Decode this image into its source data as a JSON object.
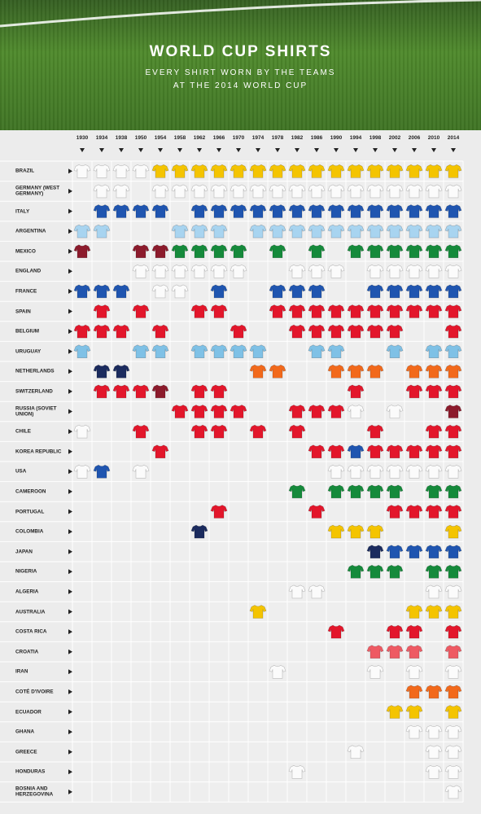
{
  "header": {
    "title": "WORLD CUP SHIRTS",
    "subtitle_lines": [
      "EVERY SHIRT WORN BY THE TEAMS",
      "AT THE 2014 WORLD CUP"
    ]
  },
  "years": [
    "1930",
    "1934",
    "1938",
    "1950",
    "1954",
    "1958",
    "1962",
    "1966",
    "1970",
    "1974",
    "1978",
    "1982",
    "1986",
    "1990",
    "1994",
    "1998",
    "2002",
    "2006",
    "2010",
    "2014"
  ],
  "colors": {
    "w": "#fbfbfb",
    "y": "#f4c400",
    "b": "#1f55b0",
    "a": "#a8d4f0",
    "s": "#7fc1e6",
    "n": "#1b2b5e",
    "r": "#e3162b",
    "m": "#8c1b2c",
    "g": "#158a3b",
    "o": "#f2691b",
    "c": "#ee5a63"
  },
  "teams": [
    {
      "name": "BRAZIL",
      "shirts": [
        "w",
        "w",
        "w",
        "w",
        "y",
        "y",
        "y",
        "y",
        "y",
        "y",
        "y",
        "y",
        "y",
        "y",
        "y",
        "y",
        "y",
        "y",
        "y",
        "y"
      ]
    },
    {
      "name": "GERMANY (WEST GERMANY)",
      "shirts": [
        null,
        "w",
        "w",
        null,
        "w",
        "w",
        "w",
        "w",
        "w",
        "w",
        "w",
        "w",
        "w",
        "w",
        "w",
        "w",
        "w",
        "w",
        "w",
        "w"
      ]
    },
    {
      "name": "ITALY",
      "shirts": [
        null,
        "b",
        "b",
        "b",
        "b",
        null,
        "b",
        "b",
        "b",
        "b",
        "b",
        "b",
        "b",
        "b",
        "b",
        "b",
        "b",
        "b",
        "b",
        "b"
      ]
    },
    {
      "name": "ARGENTINA",
      "shirts": [
        "a",
        "a",
        null,
        null,
        null,
        "a",
        "a",
        "a",
        null,
        "a",
        "a",
        "a",
        "a",
        "a",
        "a",
        "a",
        "a",
        "a",
        "a",
        "a"
      ]
    },
    {
      "name": "MEXICO",
      "shirts": [
        "m",
        null,
        null,
        "m",
        "m",
        "g",
        "g",
        "g",
        "g",
        null,
        "g",
        null,
        "g",
        null,
        "g",
        "g",
        "g",
        "g",
        "g",
        "g"
      ]
    },
    {
      "name": "ENGLAND",
      "shirts": [
        null,
        null,
        null,
        "w",
        "w",
        "w",
        "w",
        "w",
        "w",
        null,
        null,
        "w",
        "w",
        "w",
        null,
        "w",
        "w",
        "w",
        "w",
        "w"
      ]
    },
    {
      "name": "FRANCE",
      "shirts": [
        "b",
        "b",
        "b",
        null,
        "w",
        "w",
        null,
        "b",
        null,
        null,
        "b",
        "b",
        "b",
        null,
        null,
        "b",
        "b",
        "b",
        "b",
        "b"
      ]
    },
    {
      "name": "SPAIN",
      "shirts": [
        null,
        "r",
        null,
        "r",
        null,
        null,
        "r",
        "r",
        null,
        null,
        "r",
        "r",
        "r",
        "r",
        "r",
        "r",
        "r",
        "r",
        "r",
        "r"
      ]
    },
    {
      "name": "BELGIUM",
      "shirts": [
        "r",
        "r",
        "r",
        null,
        "r",
        null,
        null,
        null,
        "r",
        null,
        null,
        "r",
        "r",
        "r",
        "r",
        "r",
        "r",
        null,
        null,
        "r"
      ]
    },
    {
      "name": "URUGUAY",
      "shirts": [
        "s",
        null,
        null,
        "s",
        "s",
        null,
        "s",
        "s",
        "s",
        "s",
        null,
        null,
        "s",
        "s",
        null,
        null,
        "s",
        null,
        "s",
        "s"
      ]
    },
    {
      "name": "NETHERLANDS",
      "shirts": [
        null,
        "n",
        "n",
        null,
        null,
        null,
        null,
        null,
        null,
        "o",
        "o",
        null,
        null,
        "o",
        "o",
        "o",
        null,
        "o",
        "o",
        "o"
      ]
    },
    {
      "name": "SWITZERLAND",
      "shirts": [
        null,
        "r",
        "r",
        "r",
        "m",
        null,
        "r",
        "r",
        null,
        null,
        null,
        null,
        null,
        null,
        "r",
        null,
        null,
        "r",
        "r",
        "r"
      ]
    },
    {
      "name": "RUSSIA (SOVIET UNION)",
      "shirts": [
        null,
        null,
        null,
        null,
        null,
        "r",
        "r",
        "r",
        "r",
        null,
        null,
        "r",
        "r",
        "r",
        "w",
        null,
        "w",
        null,
        null,
        "m"
      ]
    },
    {
      "name": "CHILE",
      "shirts": [
        "w",
        null,
        null,
        "r",
        null,
        null,
        "r",
        "r",
        null,
        "r",
        null,
        "r",
        null,
        null,
        null,
        "r",
        null,
        null,
        "r",
        "r"
      ]
    },
    {
      "name": "KOREA REPUBLIC",
      "shirts": [
        null,
        null,
        null,
        null,
        "r",
        null,
        null,
        null,
        null,
        null,
        null,
        null,
        "r",
        "r",
        "b",
        "r",
        "r",
        "r",
        "r",
        "r"
      ]
    },
    {
      "name": "USA",
      "shirts": [
        "w",
        "b",
        null,
        "w",
        null,
        null,
        null,
        null,
        null,
        null,
        null,
        null,
        null,
        "w",
        "w",
        "w",
        "w",
        "w",
        "w",
        "w"
      ]
    },
    {
      "name": "CAMEROON",
      "shirts": [
        null,
        null,
        null,
        null,
        null,
        null,
        null,
        null,
        null,
        null,
        null,
        "g",
        null,
        "g",
        "g",
        "g",
        "g",
        null,
        "g",
        "g"
      ]
    },
    {
      "name": "PORTUGAL",
      "shirts": [
        null,
        null,
        null,
        null,
        null,
        null,
        null,
        "r",
        null,
        null,
        null,
        null,
        "r",
        null,
        null,
        null,
        "r",
        "r",
        "r",
        "r"
      ]
    },
    {
      "name": "COLOMBIA",
      "shirts": [
        null,
        null,
        null,
        null,
        null,
        null,
        "n",
        null,
        null,
        null,
        null,
        null,
        null,
        "y",
        "y",
        "y",
        null,
        null,
        null,
        "y"
      ]
    },
    {
      "name": "JAPAN",
      "shirts": [
        null,
        null,
        null,
        null,
        null,
        null,
        null,
        null,
        null,
        null,
        null,
        null,
        null,
        null,
        null,
        "n",
        "b",
        "b",
        "b",
        "b"
      ]
    },
    {
      "name": "NIGERIA",
      "shirts": [
        null,
        null,
        null,
        null,
        null,
        null,
        null,
        null,
        null,
        null,
        null,
        null,
        null,
        null,
        "g",
        "g",
        "g",
        null,
        "g",
        "g"
      ]
    },
    {
      "name": "ALGERIA",
      "shirts": [
        null,
        null,
        null,
        null,
        null,
        null,
        null,
        null,
        null,
        null,
        null,
        "w",
        "w",
        null,
        null,
        null,
        null,
        null,
        "w",
        "w"
      ]
    },
    {
      "name": "AUSTRALIA",
      "shirts": [
        null,
        null,
        null,
        null,
        null,
        null,
        null,
        null,
        null,
        "y",
        null,
        null,
        null,
        null,
        null,
        null,
        null,
        "y",
        "y",
        "y"
      ]
    },
    {
      "name": "COSTA RICA",
      "shirts": [
        null,
        null,
        null,
        null,
        null,
        null,
        null,
        null,
        null,
        null,
        null,
        null,
        null,
        "r",
        null,
        null,
        "r",
        "r",
        null,
        "r"
      ]
    },
    {
      "name": "CROATIA",
      "shirts": [
        null,
        null,
        null,
        null,
        null,
        null,
        null,
        null,
        null,
        null,
        null,
        null,
        null,
        null,
        null,
        "c",
        "c",
        "c",
        null,
        "c"
      ]
    },
    {
      "name": "IRAN",
      "shirts": [
        null,
        null,
        null,
        null,
        null,
        null,
        null,
        null,
        null,
        null,
        "w",
        null,
        null,
        null,
        null,
        "w",
        null,
        "w",
        null,
        "w"
      ]
    },
    {
      "name": "COTÉ D'IVOIRE",
      "shirts": [
        null,
        null,
        null,
        null,
        null,
        null,
        null,
        null,
        null,
        null,
        null,
        null,
        null,
        null,
        null,
        null,
        null,
        "o",
        "o",
        "o"
      ]
    },
    {
      "name": "ECUADOR",
      "shirts": [
        null,
        null,
        null,
        null,
        null,
        null,
        null,
        null,
        null,
        null,
        null,
        null,
        null,
        null,
        null,
        null,
        "y",
        "y",
        null,
        "y"
      ]
    },
    {
      "name": "GHANA",
      "shirts": [
        null,
        null,
        null,
        null,
        null,
        null,
        null,
        null,
        null,
        null,
        null,
        null,
        null,
        null,
        null,
        null,
        null,
        "w",
        "w",
        "w"
      ]
    },
    {
      "name": "GREECE",
      "shirts": [
        null,
        null,
        null,
        null,
        null,
        null,
        null,
        null,
        null,
        null,
        null,
        null,
        null,
        null,
        "w",
        null,
        null,
        null,
        "w",
        "w"
      ]
    },
    {
      "name": "HONDURAS",
      "shirts": [
        null,
        null,
        null,
        null,
        null,
        null,
        null,
        null,
        null,
        null,
        null,
        "w",
        null,
        null,
        null,
        null,
        null,
        null,
        "w",
        "w"
      ]
    },
    {
      "name": "BOSNIA AND HERZEGOVINA",
      "shirts": [
        null,
        null,
        null,
        null,
        null,
        null,
        null,
        null,
        null,
        null,
        null,
        null,
        null,
        null,
        null,
        null,
        null,
        null,
        null,
        "w"
      ]
    }
  ]
}
